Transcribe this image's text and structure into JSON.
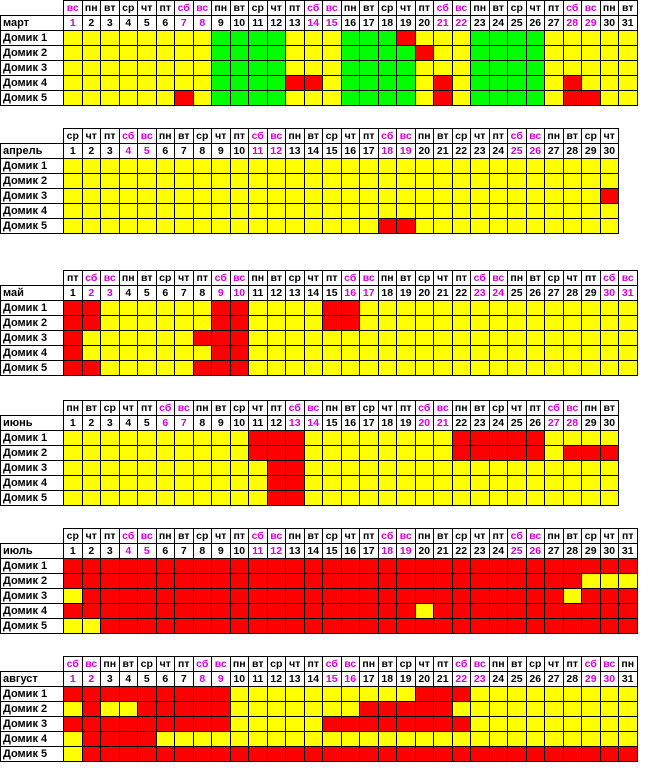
{
  "palette": {
    "Y": "#ffff00",
    "R": "#ff0000",
    "G": "#00ff00",
    "weekend_text": "#d400d4"
  },
  "months": [
    {
      "name": "март",
      "weekdays": [
        "вс",
        "пн",
        "вт",
        "ср",
        "чт",
        "пт",
        "сб",
        "вс",
        "пн",
        "вт",
        "ср",
        "чт",
        "пт",
        "сб",
        "вс",
        "пн",
        "вт",
        "ср",
        "чт",
        "пт",
        "сб",
        "вс",
        "пн",
        "вт",
        "ср",
        "чт",
        "пт",
        "сб",
        "вс",
        "пн",
        "вт"
      ],
      "houses": [
        {
          "label": "Домик 1",
          "cells": "YYYYYYYYGGGGYYYGGGRYYYGGGGYYYYY"
        },
        {
          "label": "Домик 2",
          "cells": "YYYYYYYYGGGGYYYGGGGRYYGGGGYYYYY"
        },
        {
          "label": "Домик 3",
          "cells": "YYYYYYYYGGGGYYYGGGGYYYGGGGYYYYY"
        },
        {
          "label": "Домик 4",
          "cells": "YYYYYYYYGGGGRRYGGGGYRYGGGGYRYYY"
        },
        {
          "label": "Домик 5",
          "cells": "YYYYYYRYGGGGYYYGGGGYRYGGGGYRRYY"
        }
      ]
    },
    {
      "name": "апрель",
      "weekdays": [
        "ср",
        "чт",
        "пт",
        "сб",
        "вс",
        "пн",
        "вт",
        "ср",
        "чт",
        "пт",
        "сб",
        "вс",
        "пн",
        "вт",
        "ср",
        "чт",
        "пт",
        "сб",
        "вс",
        "пн",
        "вт",
        "ср",
        "чт",
        "пт",
        "сб",
        "вс",
        "пн",
        "вт",
        "ср",
        "чт"
      ],
      "houses": [
        {
          "label": "Домик 1",
          "cells": "YYYYYYYYYYYYYYYYYYYYYYYYYYYYYY"
        },
        {
          "label": "Домик 2",
          "cells": "YYYYYYYYYYYYYYYYYYYYYYYYYYYYYY"
        },
        {
          "label": "Домик 3",
          "cells": "YYYYYYYYYYYYYYYYYYYYYYYYYYYYYR"
        },
        {
          "label": "Домик 4",
          "cells": "YYYYYYYYYYYYYYYYYYYYYYYYYYYYYY"
        },
        {
          "label": "Домик 5",
          "cells": "YYYYYYYYYYYYYYYYYRRYYYYYYYYYYY"
        }
      ]
    },
    {
      "name": "май",
      "weekdays": [
        "пт",
        "сб",
        "вс",
        "пн",
        "вт",
        "ср",
        "чт",
        "пт",
        "сб",
        "вс",
        "пн",
        "вт",
        "ср",
        "чт",
        "пт",
        "сб",
        "вс",
        "пн",
        "вт",
        "ср",
        "чт",
        "пт",
        "сб",
        "вс",
        "пн",
        "вт",
        "ср",
        "чт",
        "пт",
        "сб",
        "вс"
      ],
      "houses": [
        {
          "label": "Домик 1",
          "cells": "RRYYYYYYRRYYYYRRYYYYYYYYYYYYYYY"
        },
        {
          "label": "Домик 2",
          "cells": "RRYYYYYYRRYYYYRRYYYYYYYYYYYYYYY"
        },
        {
          "label": "Домик 3",
          "cells": "RYYYYYYRRRYYYYYYYYYYYYYYYYYYYYY"
        },
        {
          "label": "Домик 4",
          "cells": "RYYYYYYYRRYYYYYYYYYYYYYYYYYYYYY"
        },
        {
          "label": "Домик 5",
          "cells": "RRYYYYYRRRYYYYYYYYYYYYYYYYYYYYY"
        }
      ]
    },
    {
      "name": "июнь",
      "weekdays": [
        "пн",
        "вт",
        "ср",
        "чт",
        "пт",
        "сб",
        "вс",
        "пн",
        "вт",
        "ср",
        "чт",
        "пт",
        "сб",
        "вс",
        "пн",
        "вт",
        "ср",
        "чт",
        "пт",
        "сб",
        "вс",
        "пн",
        "вт",
        "ср",
        "чт",
        "пт",
        "сб",
        "вс",
        "пн",
        "вт"
      ],
      "houses": [
        {
          "label": "Домик 1",
          "cells": "YYYYYYYYYYRRRYYYYYYYYRRRRRYYYY"
        },
        {
          "label": "Домик 2",
          "cells": "YYYYYYYYYYRRRYYYYYYYYRRRRRYRRR"
        },
        {
          "label": "Домик 3",
          "cells": "YYYYYYYYYYYRRYYYYYYYYYYYYYYYYY"
        },
        {
          "label": "Домик 4",
          "cells": "YYYYYYYYYYYRRYYYYYYYYYYYYYYYYY"
        },
        {
          "label": "Домик 5",
          "cells": "YYYYYYYYYYYRRYYYYYYYYYYYYYYYYY"
        }
      ]
    },
    {
      "name": "июль",
      "weekdays": [
        "ср",
        "чт",
        "пт",
        "сб",
        "вс",
        "пн",
        "вт",
        "ср",
        "чт",
        "пт",
        "сб",
        "вс",
        "пн",
        "вт",
        "ср",
        "чт",
        "пт",
        "сб",
        "вс",
        "пн",
        "вт",
        "ср",
        "чт",
        "пт",
        "сб",
        "вс",
        "пн",
        "вт",
        "ср",
        "чт",
        "пт"
      ],
      "houses": [
        {
          "label": "Домик 1",
          "cells": "RRRRRRRRRRRRRRRRRRRRRRRRRRRRRRR"
        },
        {
          "label": "Домик 2",
          "cells": "RRRRRRRRRRRRRRRRRRRRRRRRRRRRYYY"
        },
        {
          "label": "Домик 3",
          "cells": "YRRRRRRRRRRRRRRRRRRRRRRRRRRYRRR"
        },
        {
          "label": "Домик 4",
          "cells": "RRRRRRRRRRRRRRRRRRRYRRRRRRRRRRR"
        },
        {
          "label": "Домик 5",
          "cells": "YYRRRRRRRRRRRRRRRRRRRRRRRRRRRRR"
        }
      ]
    },
    {
      "name": "август",
      "weekdays": [
        "сб",
        "вс",
        "пн",
        "вт",
        "ср",
        "чт",
        "пт",
        "сб",
        "вс",
        "пн",
        "вт",
        "ср",
        "чт",
        "пт",
        "сб",
        "вс",
        "пн",
        "вт",
        "ср",
        "чт",
        "пт",
        "сб",
        "вс",
        "пн",
        "вт",
        "ср",
        "чт",
        "пт",
        "сб",
        "вс",
        "пн"
      ],
      "houses": [
        {
          "label": "Домик 1",
          "cells": "RRRRRRRRRYYYYYYYYYYRRRYYYYYYYYY"
        },
        {
          "label": "Домик 2",
          "cells": "YRYYRRRRRYYYYYYYRRRRRYYYYYYYYYY"
        },
        {
          "label": "Домик 3",
          "cells": "RRRRRRRRRYYYYYRRRRRRRRYYYYYYYYY"
        },
        {
          "label": "Домик 4",
          "cells": "YRRRRYYYYYYYYYYYYYYYYYYYYYYYYYY"
        },
        {
          "label": "Домик 5",
          "cells": "YRRRRRRRRRRRRRRRRRRRRRRRRRRRRRR"
        }
      ]
    }
  ]
}
